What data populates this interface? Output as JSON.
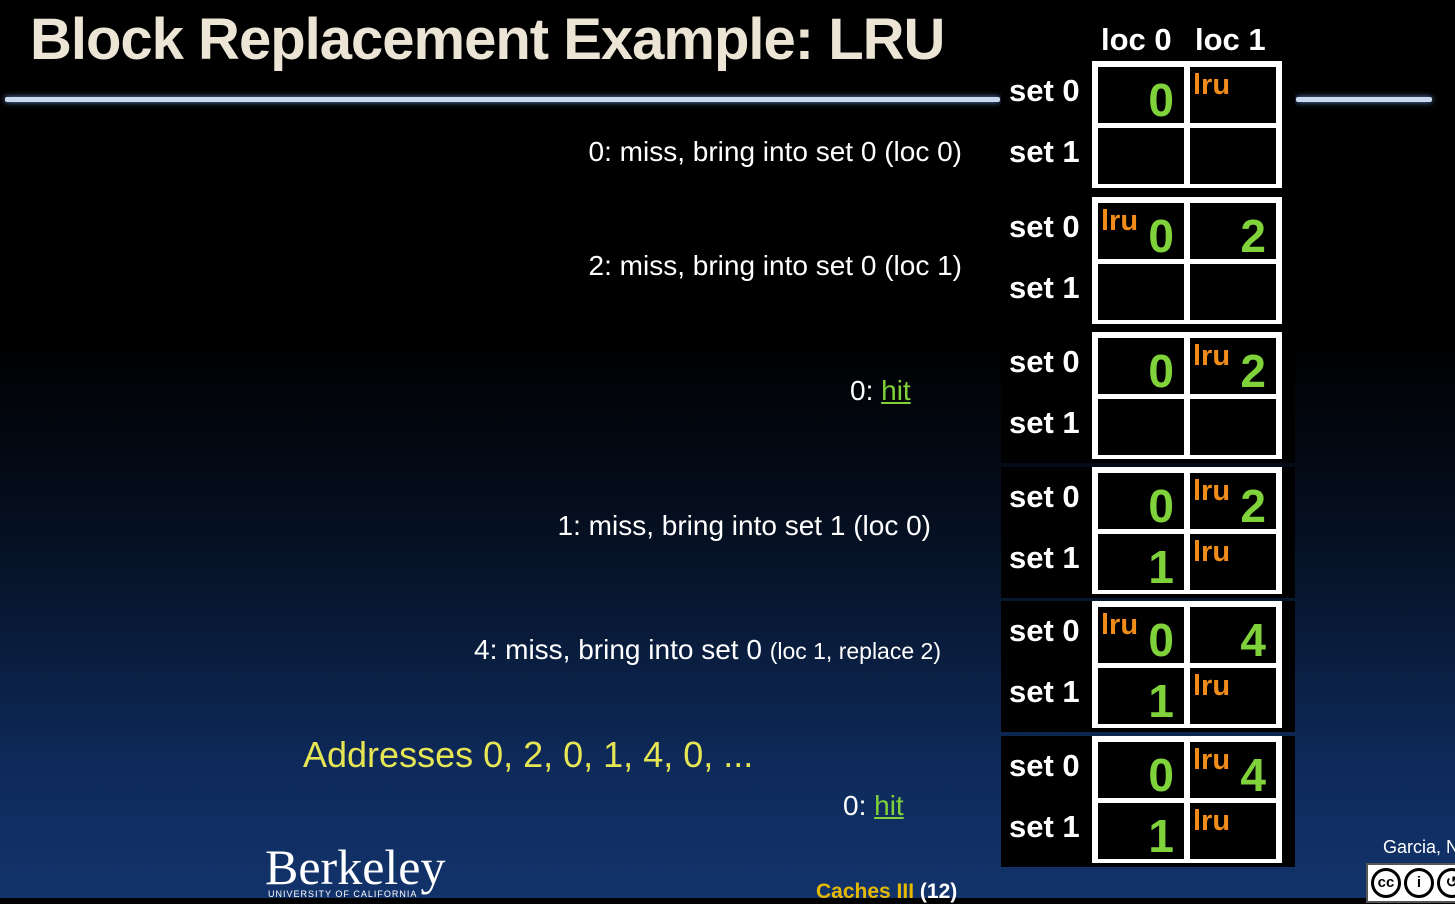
{
  "title": "Block Replacement Example: LRU",
  "columns": {
    "loc0": "loc 0",
    "loc1": "loc 1"
  },
  "set_labels": {
    "set0": "set 0",
    "set1": "set 1"
  },
  "lru_label": "lru",
  "steps": [
    {
      "text": "0: miss, bring into set 0 (loc 0)",
      "small": "",
      "cells": {
        "s0l0": "0",
        "s0l1": "",
        "s1l0": "",
        "s1l1": ""
      },
      "lru": [
        "s0l1"
      ]
    },
    {
      "text": "2: miss, bring into set 0 (loc 1)",
      "small": "",
      "cells": {
        "s0l0": "0",
        "s0l1": "2",
        "s1l0": "",
        "s1l1": ""
      },
      "lru": [
        "s0l0"
      ]
    },
    {
      "text": "0: ",
      "hit": "hit",
      "cells": {
        "s0l0": "0",
        "s0l1": "2",
        "s1l0": "",
        "s1l1": ""
      },
      "lru": [
        "s0l1"
      ]
    },
    {
      "text": "1: miss, bring into set 1 (loc 0)",
      "small": "",
      "cells": {
        "s0l0": "0",
        "s0l1": "2",
        "s1l0": "1",
        "s1l1": ""
      },
      "lru": [
        "s0l1",
        "s1l1"
      ]
    },
    {
      "text": "4: miss, bring into set 0 ",
      "small": "(loc 1, replace 2)",
      "cells": {
        "s0l0": "0",
        "s0l1": "4",
        "s1l0": "1",
        "s1l1": ""
      },
      "lru": [
        "s0l0",
        "s1l1"
      ]
    },
    {
      "text": "0: ",
      "hit": "hit",
      "cells": {
        "s0l0": "0",
        "s0l1": "4",
        "s1l0": "1",
        "s1l1": ""
      },
      "lru": [
        "s0l1",
        "s1l1"
      ]
    }
  ],
  "addresses": "Addresses 0, 2, 0, 1, 4, 0, ...",
  "footer": {
    "logo": "Berkeley",
    "logo_sub": "UNIVERSITY OF CALIFORNIA",
    "lecture": "Caches III",
    "page": "(12)",
    "author": "Garcia, N"
  },
  "license_icons": [
    "cc-icon",
    "by-icon",
    "sa-icon"
  ],
  "colors": {
    "number": "#7fd23a",
    "lru": "#f08c1a",
    "addresses": "#e6e654",
    "title": "#ece5d6"
  }
}
